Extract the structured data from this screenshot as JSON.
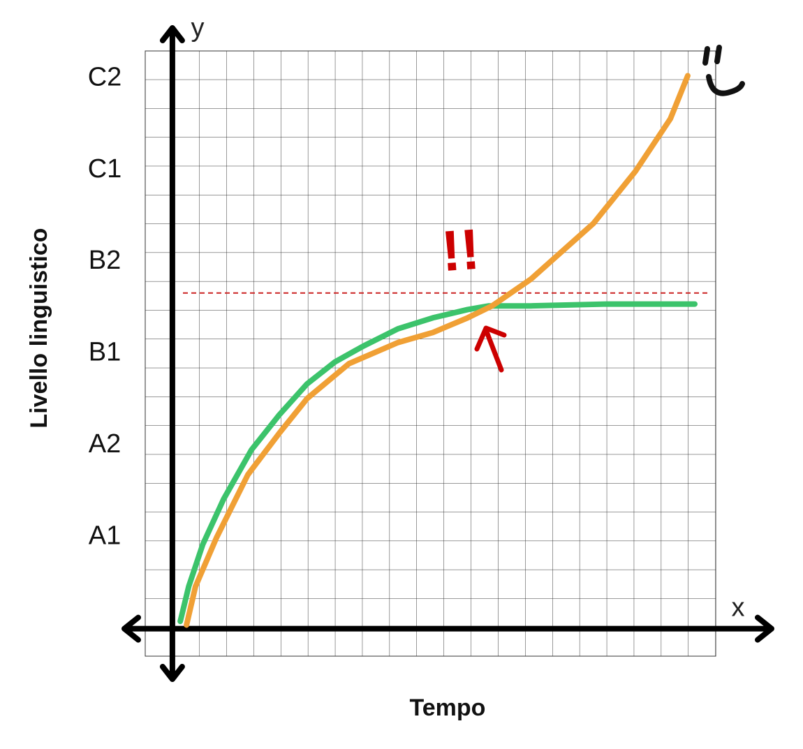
{
  "chart_data": {
    "type": "line",
    "xlabel": "Tempo",
    "ylabel": "Livello linguistico",
    "x_symbol": "x",
    "y_symbol": "y",
    "annotation": "!!",
    "xlim": [
      -1,
      20
    ],
    "ylim": [
      -0.3,
      6.3
    ],
    "yticks": [
      {
        "value": 1,
        "label": "A1"
      },
      {
        "value": 2,
        "label": "A2"
      },
      {
        "value": 3,
        "label": "B1"
      },
      {
        "value": 4,
        "label": "B2"
      },
      {
        "value": 5,
        "label": "C1"
      },
      {
        "value": 6,
        "label": "C2"
      }
    ],
    "reference_line": {
      "value": 3.66,
      "color": "#cc2222"
    },
    "annotation_color": "#cc0000",
    "grid": true,
    "series": [
      {
        "color": "#3cc36b",
        "x": [
          0.29,
          0.6,
          1.12,
          1.88,
          2.91,
          3.93,
          4.96,
          5.99,
          7.02,
          8.3,
          9.59,
          10.87,
          11.65,
          13.19,
          16.0,
          19.23
        ],
        "values": [
          0.08,
          0.46,
          0.92,
          1.41,
          1.95,
          2.33,
          2.67,
          2.91,
          3.08,
          3.27,
          3.39,
          3.48,
          3.52,
          3.52,
          3.54,
          3.54
        ]
      },
      {
        "color": "#f0a035",
        "x": [
          0.52,
          0.85,
          1.62,
          2.78,
          3.93,
          4.96,
          6.5,
          8.3,
          9.59,
          10.87,
          11.77,
          13.19,
          15.5,
          17.05,
          18.33,
          18.97
        ],
        "values": [
          0.04,
          0.46,
          0.99,
          1.68,
          2.13,
          2.51,
          2.89,
          3.12,
          3.23,
          3.39,
          3.52,
          3.81,
          4.42,
          4.99,
          5.56,
          6.03
        ]
      }
    ]
  }
}
